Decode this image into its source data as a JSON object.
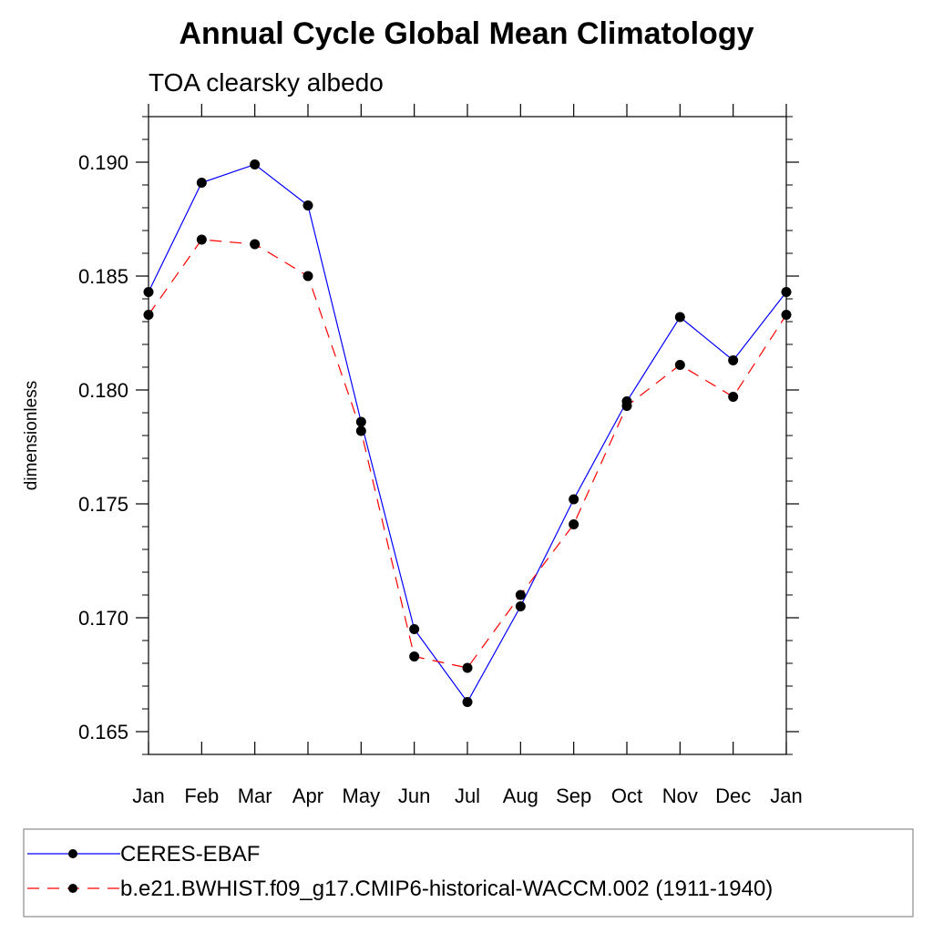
{
  "chart_data": {
    "type": "line",
    "title": "Annual Cycle Global Mean Climatology",
    "subtitle": "TOA clearsky albedo",
    "xlabel": "",
    "ylabel": "dimensionless",
    "categories": [
      "Jan",
      "Feb",
      "Mar",
      "Apr",
      "May",
      "Jun",
      "Jul",
      "Aug",
      "Sep",
      "Oct",
      "Nov",
      "Dec",
      "Jan"
    ],
    "ylim": [
      0.164,
      0.192
    ],
    "yticks": [
      0.165,
      0.17,
      0.175,
      0.18,
      0.185,
      0.19
    ],
    "ytick_labels": [
      "0.165",
      "0.170",
      "0.175",
      "0.180",
      "0.185",
      "0.190"
    ],
    "legend_position": "bottom",
    "series": [
      {
        "name": "CERES-EBAF",
        "color": "#0000ff",
        "line_style": "solid",
        "marker": "filled-circle",
        "values": [
          0.1843,
          0.1891,
          0.1899,
          0.1881,
          0.1786,
          0.1695,
          0.1663,
          0.1705,
          0.1752,
          0.1795,
          0.1832,
          0.1813,
          0.1843
        ]
      },
      {
        "name": "b.e21.BWHIST.f09_g17.CMIP6-historical-WACCM.002 (1911-1940)",
        "color": "#ff0000",
        "line_style": "dashed",
        "marker": "filled-circle",
        "values": [
          0.1833,
          0.1866,
          0.1864,
          0.185,
          0.1782,
          0.1683,
          0.1678,
          0.171,
          0.1741,
          0.1793,
          0.1811,
          0.1797,
          0.1833
        ]
      }
    ]
  }
}
